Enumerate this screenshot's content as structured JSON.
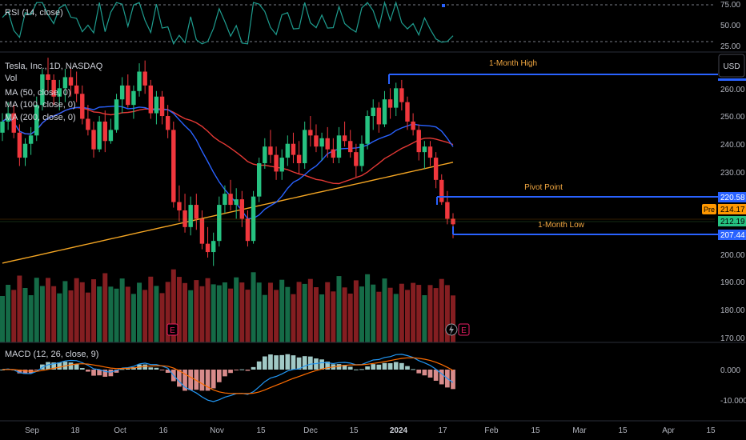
{
  "rsi": {
    "label": "RSI (14, close)",
    "axis": [
      "75.00",
      "50.00",
      "25.00"
    ]
  },
  "legend": {
    "symbol": "Tesla, Inc., 1D, NASDAQ",
    "vol": "Vol",
    "ma50": "MA (50, close, 0)",
    "ma100": "MA (100, close, 0)",
    "ma200": "MA (200, close, 0)"
  },
  "currency": "USD",
  "price_axis": [
    "260.00",
    "250.00",
    "240.00",
    "230.00",
    "220.00",
    "200.00",
    "190.00",
    "180.00",
    "170.00"
  ],
  "annotations": {
    "month_high": "1-Month High",
    "pivot": "Pivot Point",
    "month_low": "1-Month Low"
  },
  "price_tags": {
    "pivot_value": "220.58",
    "pre_label": "Pre",
    "pre_value": "214.17",
    "last_value": "212.19",
    "low_value": "207.44"
  },
  "macd": {
    "label": "MACD (12, 26, close, 9)",
    "axis": [
      "0.000",
      "-10.000"
    ]
  },
  "time_axis": [
    "Sep",
    "18",
    "Oct",
    "16",
    "Nov",
    "15",
    "Dec",
    "15",
    "2024",
    "17",
    "Feb",
    "15",
    "Mar",
    "15",
    "Apr",
    "15"
  ],
  "events": {
    "earnings_1": "E",
    "earnings_2": "E"
  },
  "colors": {
    "up": "#26c281",
    "down": "#f0373d",
    "ma50": "#2962ff",
    "ma100": "#e53935",
    "ma200": "#f5a623",
    "level_line": "#2962ff",
    "annotation_text": "#f0a640",
    "rsi_line": "#1e9c8e",
    "macd_line": "#2196f3",
    "signal_line": "#ff6d00"
  },
  "chart_data": {
    "type": "candlestick",
    "symbol": "TSLA",
    "interval": "1D",
    "ylim": [
      195,
      268
    ],
    "levels": {
      "month_high": 262.8,
      "pivot": 220.58,
      "month_low": 207.44,
      "last": 212.19,
      "premarket": 214.17
    },
    "ohlc": [
      [
        245,
        252,
        242,
        249
      ],
      [
        249,
        256,
        246,
        252
      ],
      [
        252,
        255,
        243,
        245
      ],
      [
        245,
        248,
        233,
        236
      ],
      [
        236,
        243,
        233,
        241
      ],
      [
        241,
        247,
        237,
        244
      ],
      [
        244,
        258,
        242,
        255
      ],
      [
        255,
        268,
        253,
        266
      ],
      [
        266,
        272,
        260,
        264
      ],
      [
        264,
        266,
        255,
        258
      ],
      [
        258,
        264,
        253,
        261
      ],
      [
        261,
        268,
        256,
        265
      ],
      [
        265,
        268,
        258,
        262
      ],
      [
        262,
        267,
        256,
        259
      ],
      [
        259,
        262,
        248,
        250
      ],
      [
        250,
        255,
        244,
        246
      ],
      [
        246,
        249,
        236,
        239
      ],
      [
        239,
        251,
        238,
        249
      ],
      [
        249,
        253,
        238,
        242
      ],
      [
        242,
        250,
        241,
        246
      ],
      [
        246,
        259,
        245,
        257
      ],
      [
        257,
        265,
        252,
        262
      ],
      [
        262,
        266,
        254,
        255
      ],
      [
        255,
        262,
        250,
        260
      ],
      [
        260,
        270,
        258,
        267
      ],
      [
        267,
        271,
        259,
        262
      ],
      [
        262,
        264,
        250,
        252
      ],
      [
        252,
        260,
        248,
        258
      ],
      [
        258,
        260,
        248,
        251
      ],
      [
        251,
        255,
        243,
        246
      ],
      [
        246,
        249,
        218,
        220
      ],
      [
        220,
        226,
        213,
        217
      ],
      [
        217,
        223,
        209,
        211
      ],
      [
        211,
        222,
        208,
        219
      ],
      [
        219,
        223,
        210,
        214
      ],
      [
        214,
        217,
        203,
        205
      ],
      [
        205,
        211,
        200,
        202
      ],
      [
        202,
        209,
        197,
        206
      ],
      [
        206,
        222,
        204,
        219
      ],
      [
        219,
        226,
        216,
        223
      ],
      [
        223,
        228,
        217,
        219
      ],
      [
        219,
        225,
        214,
        221
      ],
      [
        221,
        224,
        211,
        214
      ],
      [
        214,
        217,
        204,
        206
      ],
      [
        206,
        224,
        205,
        222
      ],
      [
        222,
        236,
        220,
        234
      ],
      [
        234,
        243,
        232,
        240
      ],
      [
        240,
        246,
        234,
        237
      ],
      [
        237,
        240,
        228,
        231
      ],
      [
        231,
        239,
        228,
        236
      ],
      [
        236,
        244,
        233,
        241
      ],
      [
        241,
        245,
        234,
        237
      ],
      [
        237,
        242,
        230,
        234
      ],
      [
        234,
        249,
        232,
        246
      ],
      [
        246,
        251,
        240,
        244
      ],
      [
        244,
        248,
        238,
        240
      ],
      [
        240,
        245,
        235,
        243
      ],
      [
        243,
        247,
        236,
        239
      ],
      [
        239,
        243,
        234,
        236
      ],
      [
        236,
        247,
        234,
        244
      ],
      [
        244,
        249,
        240,
        242
      ],
      [
        242,
        246,
        236,
        238
      ],
      [
        238,
        241,
        229,
        233
      ],
      [
        233,
        244,
        231,
        241
      ],
      [
        241,
        253,
        239,
        251
      ],
      [
        251,
        257,
        246,
        254
      ],
      [
        254,
        256,
        245,
        248
      ],
      [
        248,
        260,
        247,
        257
      ],
      [
        257,
        261,
        250,
        254
      ],
      [
        254,
        263,
        251,
        261
      ],
      [
        261,
        264,
        253,
        256
      ],
      [
        256,
        258,
        246,
        249
      ],
      [
        249,
        252,
        244,
        246
      ],
      [
        246,
        248,
        235,
        238
      ],
      [
        238,
        242,
        232,
        240
      ],
      [
        240,
        242,
        233,
        236
      ],
      [
        236,
        238,
        225,
        228
      ],
      [
        228,
        230,
        219,
        220
      ],
      [
        220,
        224,
        212,
        214
      ],
      [
        214,
        216,
        207,
        212
      ]
    ]
  }
}
